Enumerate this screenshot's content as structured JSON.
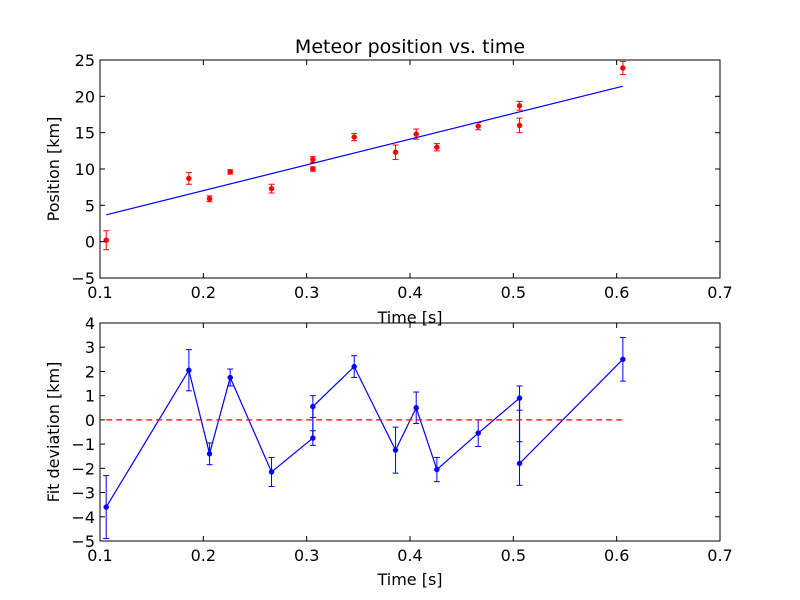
{
  "chart_data": [
    {
      "type": "scatter",
      "title": "Meteor position vs. time",
      "xlabel": "Time [s]",
      "ylabel": "Position [km]",
      "xlim": [
        0.1,
        0.7
      ],
      "ylim": [
        -5,
        25
      ],
      "xticks": [
        "0.1",
        "0.2",
        "0.3",
        "0.4",
        "0.5",
        "0.6",
        "0.7"
      ],
      "yticks": [
        "−5",
        "0",
        "5",
        "10",
        "15",
        "20",
        "25"
      ],
      "grid": false,
      "colors": {
        "points": "#ff0000",
        "fit": "#0000ff"
      },
      "series": [
        {
          "kind": "errorbar",
          "x": [
            0.106,
            0.186,
            0.206,
            0.226,
            0.266,
            0.306,
            0.306,
            0.346,
            0.386,
            0.406,
            0.426,
            0.466,
            0.506,
            0.506,
            0.606
          ],
          "y": [
            0.2,
            8.7,
            5.9,
            9.6,
            7.3,
            10.0,
            11.3,
            14.4,
            12.3,
            14.8,
            13.0,
            15.9,
            16.0,
            18.7,
            23.9
          ],
          "yerr": [
            1.3,
            0.8,
            0.4,
            0.3,
            0.6,
            0.3,
            0.4,
            0.5,
            1.0,
            0.7,
            0.5,
            0.5,
            1.0,
            0.6,
            0.9
          ]
        },
        {
          "kind": "fit-line",
          "x": [
            0.106,
            0.606
          ],
          "y": [
            3.7,
            21.4
          ]
        }
      ]
    },
    {
      "type": "line",
      "title": "",
      "xlabel": "Time [s]",
      "ylabel": "Fit deviation [km]",
      "xlim": [
        0.1,
        0.7
      ],
      "ylim": [
        -5,
        4
      ],
      "xticks": [
        "0.1",
        "0.2",
        "0.3",
        "0.4",
        "0.5",
        "0.6",
        "0.7"
      ],
      "yticks": [
        "−5",
        "−4",
        "−3",
        "−2",
        "−1",
        "0",
        "1",
        "2",
        "3",
        "4"
      ],
      "grid": false,
      "colors": {
        "series": "#0000ff",
        "zero": "#ff0000"
      },
      "series": [
        {
          "kind": "errorbar-line",
          "x": [
            0.106,
            0.186,
            0.206,
            0.226,
            0.266,
            0.306,
            0.306,
            0.346,
            0.386,
            0.406,
            0.426,
            0.466,
            0.506,
            0.506,
            0.606
          ],
          "y": [
            -3.6,
            2.05,
            -1.4,
            1.75,
            -2.15,
            -0.75,
            0.55,
            2.2,
            -1.25,
            0.5,
            -2.05,
            -0.55,
            0.9,
            -1.8,
            2.5
          ],
          "yerr": [
            1.3,
            0.85,
            0.45,
            0.35,
            0.6,
            0.3,
            0.45,
            0.45,
            0.95,
            0.65,
            0.5,
            0.55,
            0.5,
            0.9,
            0.9
          ]
        },
        {
          "kind": "zero-line",
          "x": [
            0.106,
            0.606
          ],
          "y": [
            0,
            0
          ]
        }
      ]
    }
  ]
}
